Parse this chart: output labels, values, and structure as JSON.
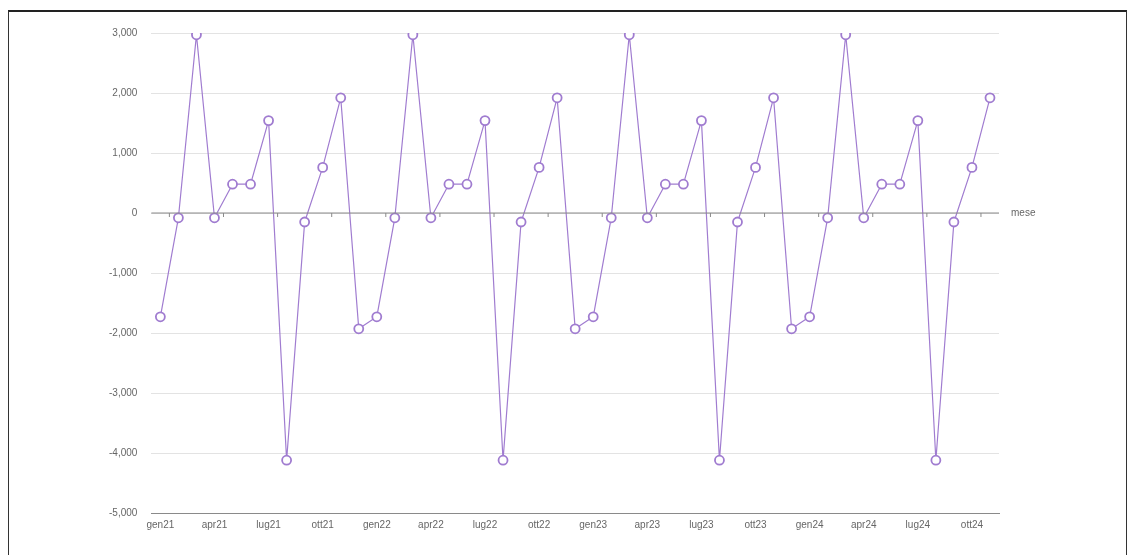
{
  "chart_data": {
    "type": "line",
    "xlabel": "mese",
    "categories": [
      "gen21",
      null,
      null,
      "apr21",
      null,
      null,
      "lug21",
      null,
      null,
      "ott21",
      null,
      null,
      "gen22",
      null,
      null,
      "apr22",
      null,
      null,
      "lug22",
      null,
      null,
      "ott22",
      null,
      null,
      "gen23",
      null,
      null,
      "apr23",
      null,
      null,
      "lug23",
      null,
      null,
      "ott23",
      null,
      null,
      "gen24",
      null,
      null,
      "apr24",
      null,
      null,
      "lug24",
      null,
      null,
      "ott24",
      null
    ],
    "series": [
      {
        "color": "#a07cd0",
        "values": [
          -1730,
          -80,
          2970,
          -80,
          480,
          480,
          1540,
          -4120,
          -150,
          760,
          1920,
          -1930,
          -1730,
          -80,
          2970,
          -80,
          480,
          480,
          1540,
          -4120,
          -150,
          760,
          1920,
          -1930,
          -1730,
          -80,
          2970,
          -80,
          480,
          480,
          1540,
          -4120,
          -150,
          760,
          1920,
          -1930,
          -1730,
          -80,
          2970,
          -80,
          480,
          480,
          1540,
          -4120,
          -150,
          760,
          1920
        ]
      }
    ],
    "ylim": [
      -5000,
      3000
    ],
    "yticks": [
      {
        "value": -5000,
        "label": "-5,000"
      },
      {
        "value": -4000,
        "label": "-4,000"
      },
      {
        "value": -3000,
        "label": "-3,000"
      },
      {
        "value": -2000,
        "label": "-2,000"
      },
      {
        "value": -1000,
        "label": "-1,000"
      },
      0,
      {
        "value": 1000,
        "label": "1,000"
      },
      {
        "value": 2000,
        "label": "2,000"
      },
      {
        "value": 3000,
        "label": "3,000"
      }
    ],
    "grid": "y",
    "legend": false,
    "marker": "circle",
    "line_style": "solid"
  }
}
